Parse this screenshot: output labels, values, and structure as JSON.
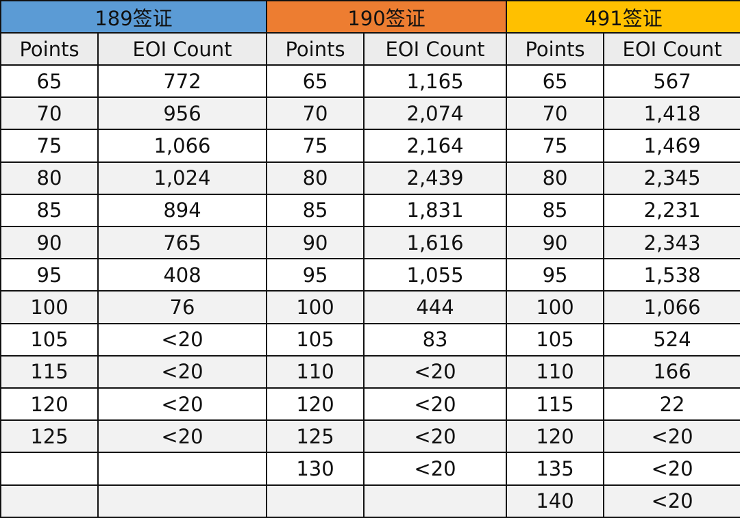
{
  "visa_headers": [
    {
      "label": "189签证",
      "color": "#5b9bd5"
    },
    {
      "label": "190签证",
      "color": "#ed7d31"
    },
    {
      "label": "491签证",
      "color": "#ffc000"
    }
  ],
  "column_headers": [
    "Points",
    "EOI Count"
  ],
  "chart_data": {
    "type": "table",
    "tables": [
      {
        "visa": "189签证",
        "columns": [
          "Points",
          "EOI Count"
        ],
        "rows": [
          [
            "65",
            "772"
          ],
          [
            "70",
            "956"
          ],
          [
            "75",
            "1,066"
          ],
          [
            "80",
            "1,024"
          ],
          [
            "85",
            "894"
          ],
          [
            "90",
            "765"
          ],
          [
            "95",
            "408"
          ],
          [
            "100",
            "76"
          ],
          [
            "105",
            "<20"
          ],
          [
            "115",
            "<20"
          ],
          [
            "120",
            "<20"
          ],
          [
            "125",
            "<20"
          ]
        ]
      },
      {
        "visa": "190签证",
        "columns": [
          "Points",
          "EOI Count"
        ],
        "rows": [
          [
            "65",
            "1,165"
          ],
          [
            "70",
            "2,074"
          ],
          [
            "75",
            "2,164"
          ],
          [
            "80",
            "2,439"
          ],
          [
            "85",
            "1,831"
          ],
          [
            "90",
            "1,616"
          ],
          [
            "95",
            "1,055"
          ],
          [
            "100",
            "444"
          ],
          [
            "105",
            "83"
          ],
          [
            "110",
            "<20"
          ],
          [
            "120",
            "<20"
          ],
          [
            "125",
            "<20"
          ],
          [
            "130",
            "<20"
          ]
        ]
      },
      {
        "visa": "491签证",
        "columns": [
          "Points",
          "EOI Count"
        ],
        "rows": [
          [
            "65",
            "567"
          ],
          [
            "70",
            "1,418"
          ],
          [
            "75",
            "1,469"
          ],
          [
            "80",
            "2,345"
          ],
          [
            "85",
            "2,231"
          ],
          [
            "90",
            "2,343"
          ],
          [
            "95",
            "1,538"
          ],
          [
            "100",
            "1,066"
          ],
          [
            "105",
            "524"
          ],
          [
            "110",
            "166"
          ],
          [
            "115",
            "22"
          ],
          [
            "120",
            "<20"
          ],
          [
            "135",
            "<20"
          ],
          [
            "140",
            "<20"
          ]
        ]
      }
    ]
  }
}
